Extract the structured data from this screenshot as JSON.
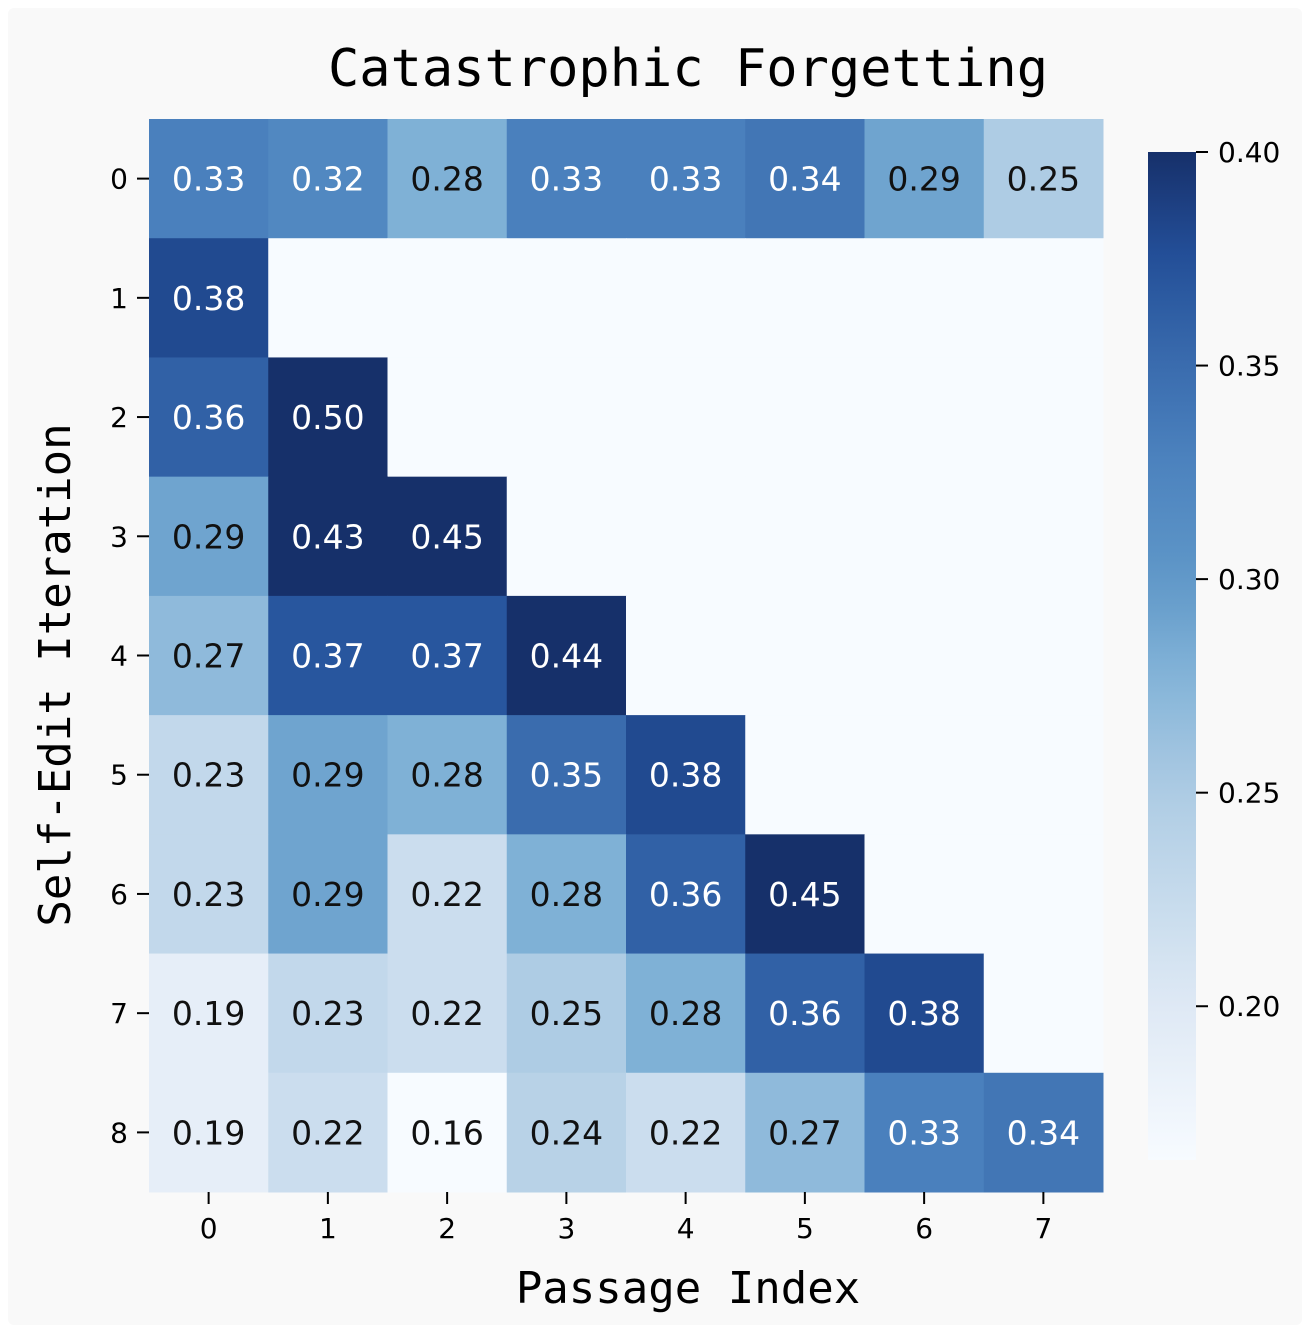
{
  "chart_data": {
    "type": "heatmap",
    "title": "Catastrophic Forgetting",
    "xlabel": "Passage Index",
    "ylabel": "Self-Edit Iteration",
    "x_categories": [
      "0",
      "1",
      "2",
      "3",
      "4",
      "5",
      "6",
      "7"
    ],
    "y_categories": [
      "0",
      "1",
      "2",
      "3",
      "4",
      "5",
      "6",
      "7",
      "8"
    ],
    "values": [
      [
        0.33,
        0.32,
        0.28,
        0.33,
        0.33,
        0.34,
        0.29,
        0.25
      ],
      [
        0.38,
        null,
        null,
        null,
        null,
        null,
        null,
        null
      ],
      [
        0.36,
        0.5,
        null,
        null,
        null,
        null,
        null,
        null
      ],
      [
        0.29,
        0.43,
        0.45,
        null,
        null,
        null,
        null,
        null
      ],
      [
        0.27,
        0.37,
        0.37,
        0.44,
        null,
        null,
        null,
        null
      ],
      [
        0.23,
        0.29,
        0.28,
        0.35,
        0.38,
        null,
        null,
        null
      ],
      [
        0.23,
        0.29,
        0.22,
        0.28,
        0.36,
        0.45,
        null,
        null
      ],
      [
        0.19,
        0.23,
        0.22,
        0.25,
        0.28,
        0.36,
        0.38,
        null
      ],
      [
        0.19,
        0.22,
        0.16,
        0.24,
        0.22,
        0.27,
        0.33,
        0.34
      ]
    ],
    "colormap": "Blues",
    "colorbar": {
      "range": [
        0.164,
        0.4
      ],
      "ticks": [
        "0.20",
        "0.25",
        "0.30",
        "0.35",
        "0.40"
      ]
    },
    "masked_color": "#f7fbff",
    "grid": false,
    "legend": "colorbar-right"
  }
}
